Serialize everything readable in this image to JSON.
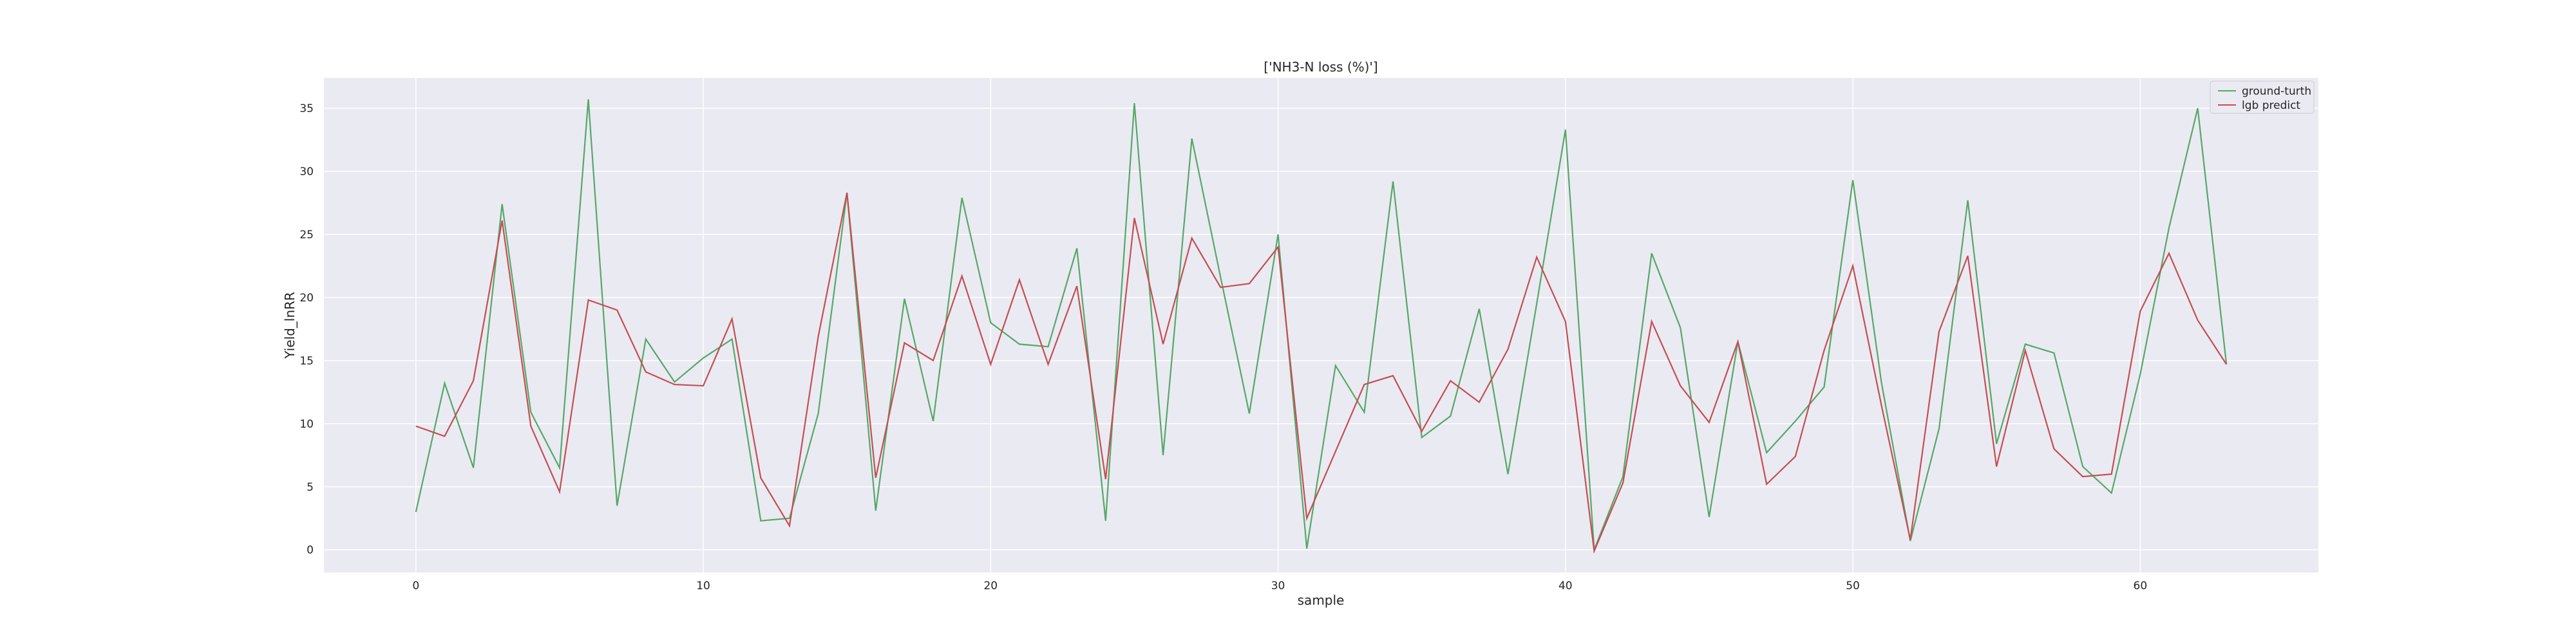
{
  "chart_data": {
    "type": "line",
    "title": "['NH3-N loss (%)']",
    "xlabel": "sample",
    "ylabel": "Yield_lnRR",
    "xlim": [
      -3.2,
      66.2
    ],
    "ylim": [
      -1.8,
      37.4
    ],
    "xticks": [
      0,
      10,
      20,
      30,
      40,
      50,
      60
    ],
    "yticks": [
      0,
      5,
      10,
      15,
      20,
      25,
      30,
      35
    ],
    "grid": true,
    "legend_position": "top-right",
    "background": "#eaeaf2",
    "series": [
      {
        "name": "ground-turth",
        "color": "#55a868",
        "values": [
          3.0,
          13.2,
          6.5,
          27.4,
          10.9,
          6.5,
          35.7,
          3.5,
          16.7,
          13.3,
          15.2,
          16.7,
          2.3,
          2.5,
          10.8,
          28.3,
          3.1,
          19.9,
          10.2,
          27.9,
          18.0,
          16.3,
          16.1,
          23.9,
          2.3,
          35.4,
          7.5,
          32.6,
          21.6,
          10.8,
          25.0,
          0.1,
          14.6,
          10.9,
          29.2,
          8.9,
          10.6,
          19.1,
          6.0,
          19.5,
          33.3,
          0.0,
          5.8,
          23.5,
          17.6,
          2.6,
          16.5,
          7.7,
          10.2,
          12.9,
          29.3,
          13.2,
          0.7,
          9.6,
          27.7,
          8.4,
          16.3,
          15.6,
          6.6,
          4.5,
          13.9,
          25.5,
          35.0,
          14.7
        ]
      },
      {
        "name": "lgb predict",
        "color": "#c44e52",
        "values": [
          9.8,
          9.0,
          13.4,
          26.1,
          9.8,
          4.6,
          19.8,
          19.0,
          14.1,
          13.1,
          13.0,
          18.3,
          5.7,
          1.9,
          16.9,
          28.3,
          5.7,
          16.4,
          15.0,
          21.7,
          14.7,
          21.4,
          14.7,
          20.9,
          5.6,
          26.3,
          16.3,
          24.7,
          20.8,
          21.1,
          24.0,
          2.5,
          7.8,
          13.1,
          13.8,
          9.4,
          13.4,
          11.7,
          15.9,
          23.2,
          18.1,
          -0.1,
          5.3,
          18.1,
          13.0,
          10.1,
          16.5,
          5.2,
          7.4,
          15.8,
          22.5,
          11.4,
          0.8,
          17.3,
          23.3,
          6.6,
          15.8,
          8.0,
          5.8,
          6.0,
          18.9,
          23.5,
          18.2,
          14.7
        ]
      }
    ]
  }
}
